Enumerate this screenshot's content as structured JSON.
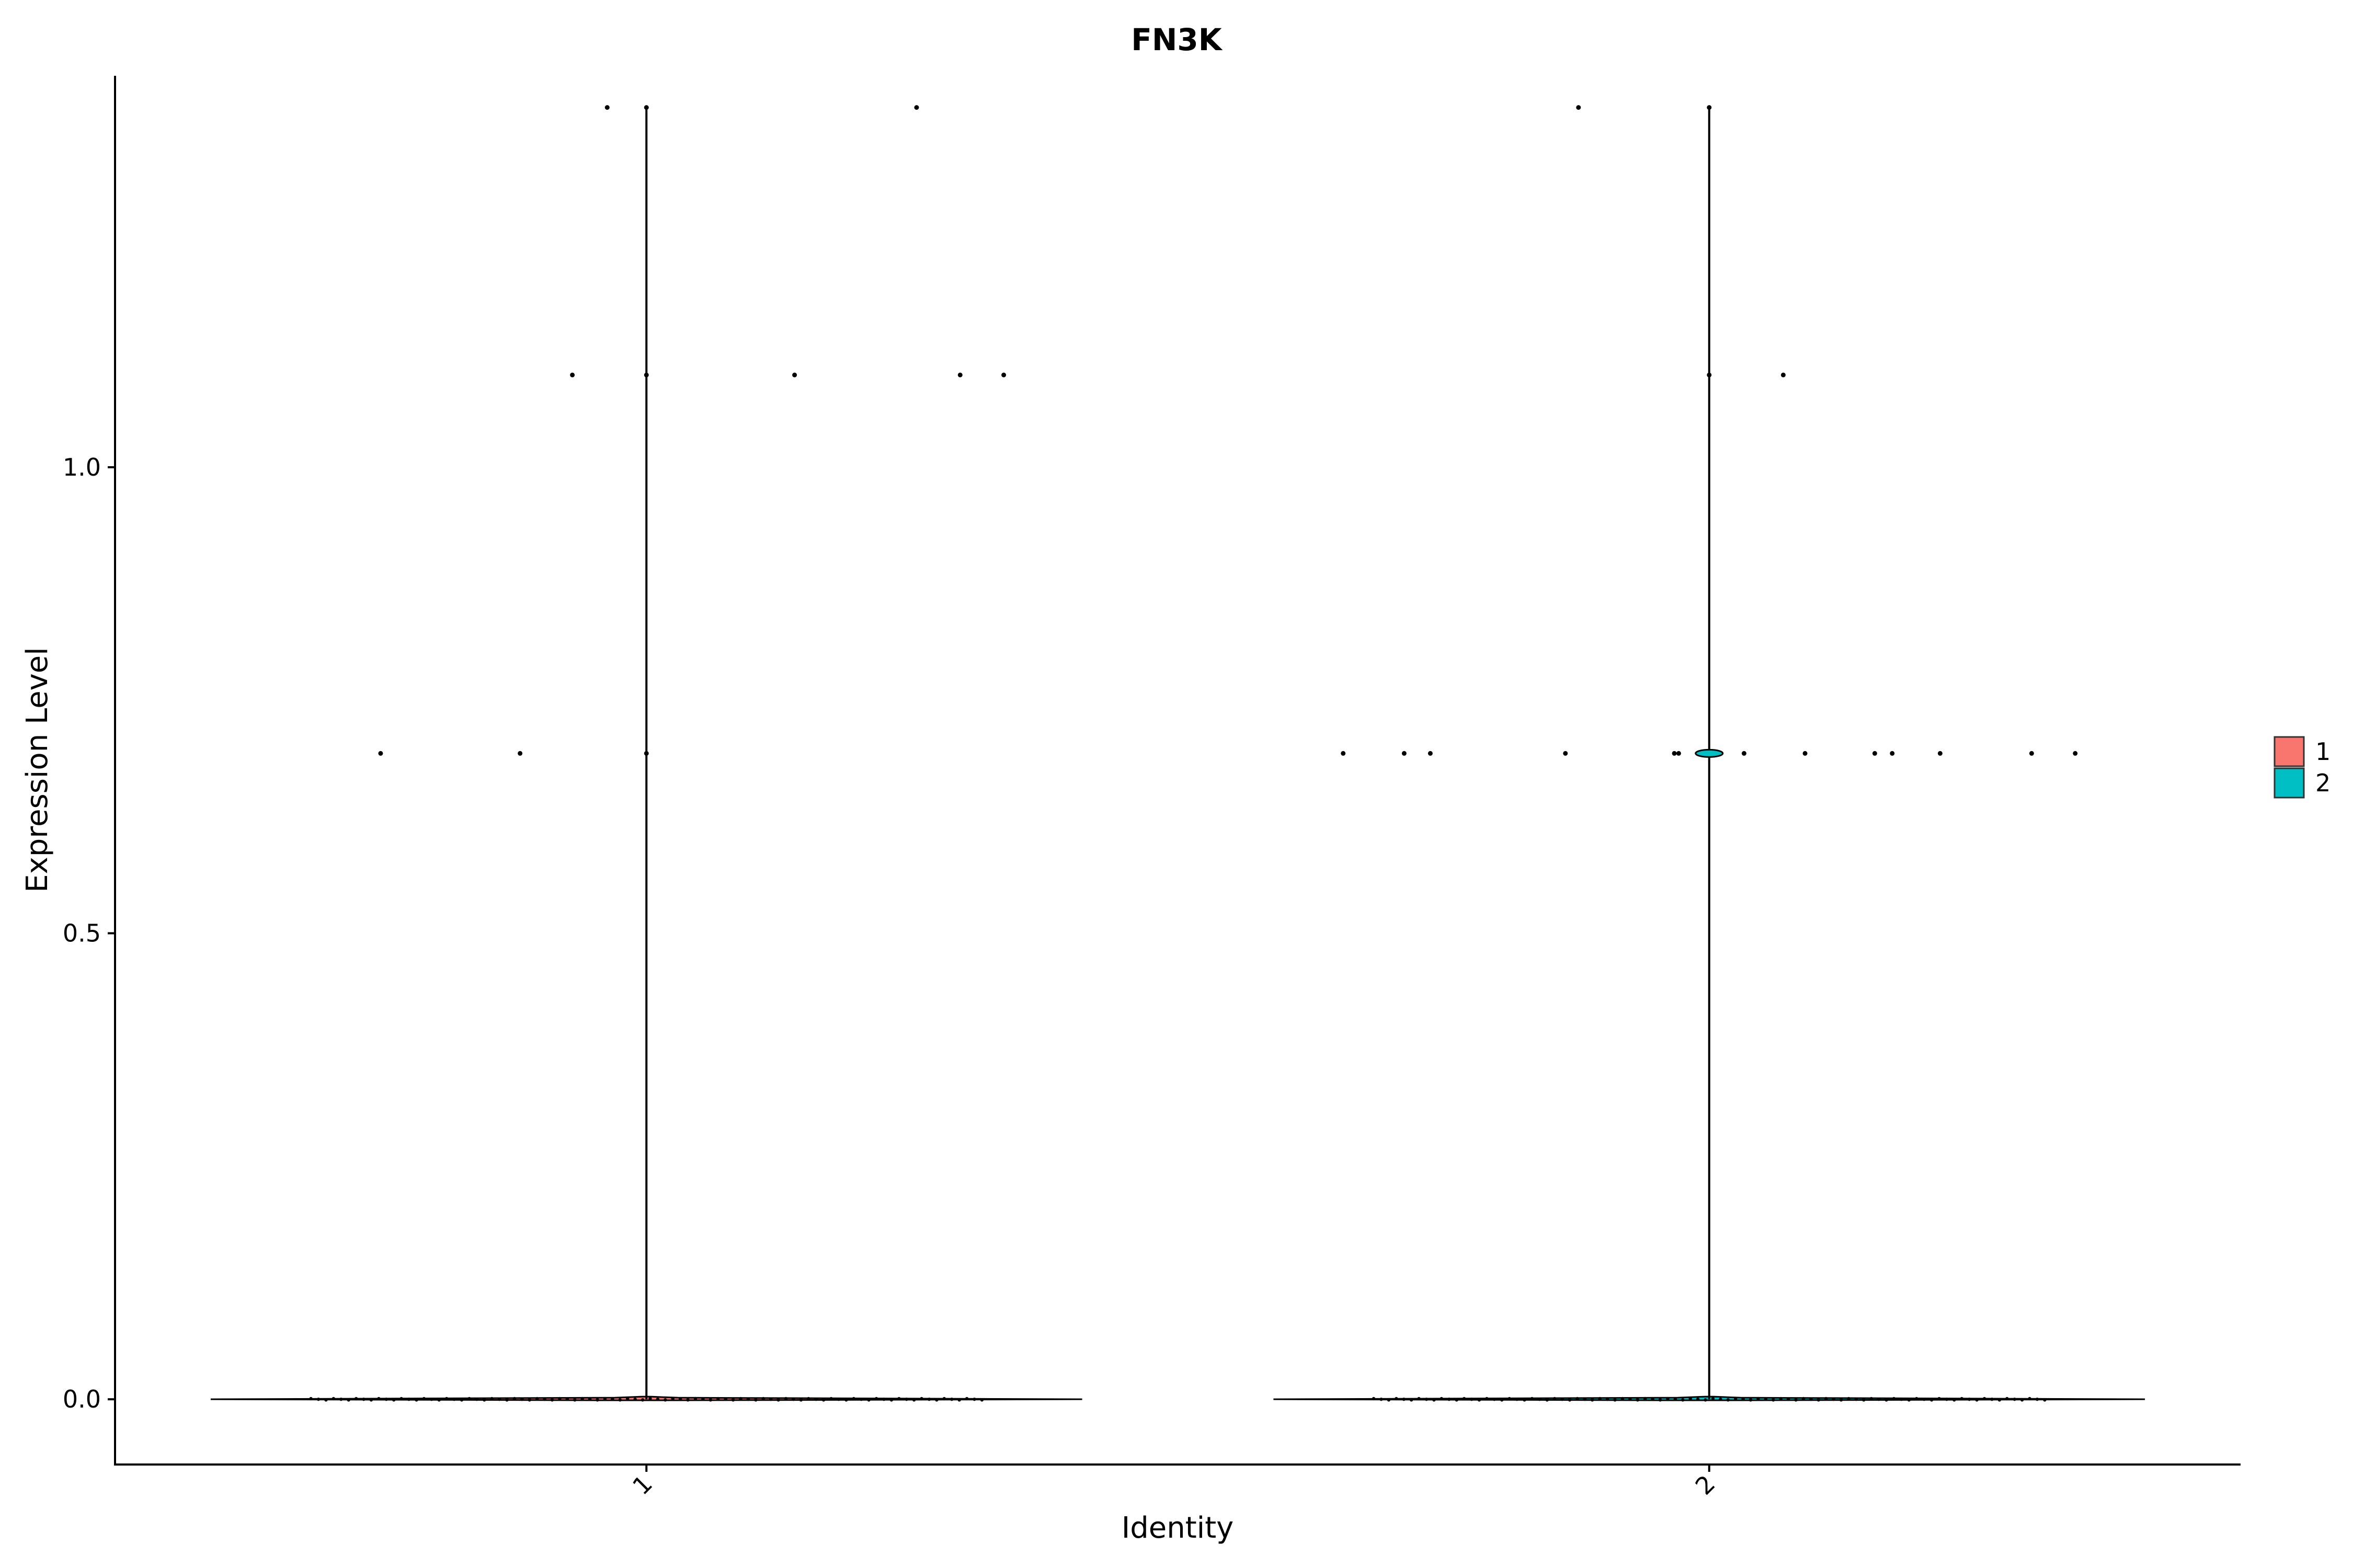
{
  "chart_data": {
    "type": "violin",
    "title": "FN3K",
    "xlabel": "Identity",
    "ylabel": "Expression Level",
    "categories": [
      "1",
      "2"
    ],
    "ylim": [
      -0.07,
      1.42
    ],
    "yticks": [
      0.0,
      0.5,
      1.0
    ],
    "ytick_labels": [
      "0.0",
      "0.5",
      "1.0"
    ],
    "xtick_rotation": 45,
    "grid": false,
    "legend": {
      "position": "right",
      "entries": [
        {
          "label": "1",
          "color": "#F8766D"
        },
        {
          "label": "2",
          "color": "#00BFC4"
        }
      ]
    },
    "series": [
      {
        "name": "1",
        "color": "#F8766D",
        "max": 1.386,
        "jitter_points": [
          {
            "dx": -0.09,
            "y": 1.386
          },
          {
            "dx": 0.0,
            "y": 1.386
          },
          {
            "dx": 0.62,
            "y": 1.386
          },
          {
            "dx": -0.17,
            "y": 1.099
          },
          {
            "dx": 0.0,
            "y": 1.099
          },
          {
            "dx": 0.34,
            "y": 1.099
          },
          {
            "dx": 0.72,
            "y": 1.099
          },
          {
            "dx": 0.82,
            "y": 1.099
          },
          {
            "dx": -0.61,
            "y": 0.693
          },
          {
            "dx": -0.29,
            "y": 0.693
          },
          {
            "dx": 0.0,
            "y": 0.693
          }
        ]
      },
      {
        "name": "2",
        "color": "#00BFC4",
        "max": 1.386,
        "jitter_points": [
          {
            "dx": -0.3,
            "y": 1.386
          },
          {
            "dx": 0.0,
            "y": 1.386
          },
          {
            "dx": 0.0,
            "y": 1.099
          },
          {
            "dx": 0.17,
            "y": 1.099
          },
          {
            "dx": -0.84,
            "y": 0.693
          },
          {
            "dx": -0.7,
            "y": 0.693
          },
          {
            "dx": -0.64,
            "y": 0.693
          },
          {
            "dx": -0.33,
            "y": 0.693
          },
          {
            "dx": -0.08,
            "y": 0.693
          },
          {
            "dx": -0.07,
            "y": 0.693
          },
          {
            "dx": 0.08,
            "y": 0.693
          },
          {
            "dx": 0.22,
            "y": 0.693
          },
          {
            "dx": 0.38,
            "y": 0.693
          },
          {
            "dx": 0.42,
            "y": 0.693
          },
          {
            "dx": 0.53,
            "y": 0.693
          },
          {
            "dx": 0.74,
            "y": 0.693
          },
          {
            "dx": 0.84,
            "y": 0.693
          }
        ]
      }
    ]
  }
}
